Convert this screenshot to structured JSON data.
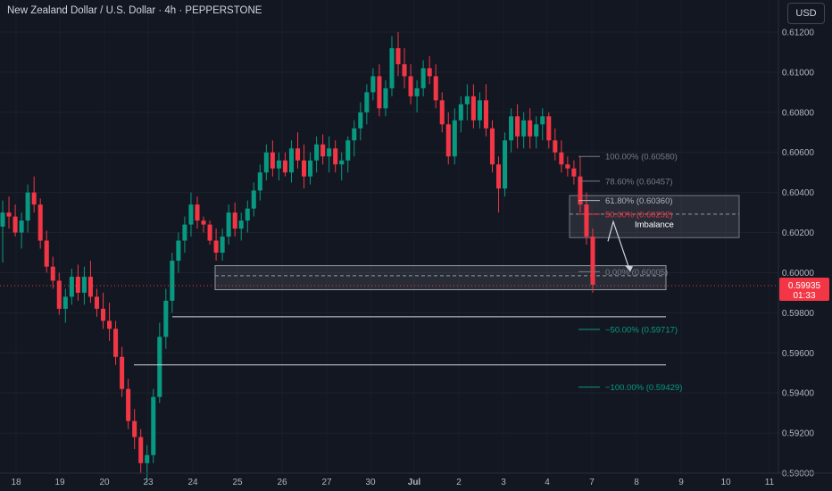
{
  "header": {
    "title": "New Zealand Dollar / U.S. Dollar · 4h · PEPPERSTONE",
    "currency_button": "USD"
  },
  "price_tag": {
    "price": "0.59935",
    "countdown": "01:33",
    "color": "#f23645"
  },
  "colors": {
    "up": "#089981",
    "down": "#f23645",
    "background": "#131722",
    "axis_text": "#b2b5be"
  },
  "annotations": {
    "imbalance_label": "Imbalance",
    "fib_levels": [
      {
        "text": "100.00% (0.60580)",
        "price": 0.6058,
        "color": "#787b86"
      },
      {
        "text": "78.60% (0.60457)",
        "price": 0.60457,
        "color": "#787b86"
      },
      {
        "text": "61.80% (0.60360)",
        "price": 0.6036,
        "color": "#b2b5be"
      },
      {
        "text": "50.00% (0.60292)",
        "price": 0.60292,
        "color": "#f23645"
      },
      {
        "text": "0.00% (0.60005)",
        "price": 0.60005,
        "color": "#787b86"
      },
      {
        "text": "−50.00% (0.59717)",
        "price": 0.59717,
        "color": "#089981"
      },
      {
        "text": "−100.00% (0.59429)",
        "price": 0.59429,
        "color": "#089981"
      }
    ],
    "zones": [
      {
        "name": "imbalance",
        "top": 0.60385,
        "bottom": 0.60175
      },
      {
        "name": "demand",
        "top": 0.60035,
        "bottom": 0.59915,
        "midline": 0.59985
      }
    ],
    "levels": [
      0.5978,
      0.5954
    ]
  },
  "chart_data": {
    "type": "candlestick",
    "timeframe": "4h",
    "y_ticks": [
      "0.61200",
      "0.61000",
      "0.60800",
      "0.60600",
      "0.60400",
      "0.60200",
      "0.60000",
      "0.59800",
      "0.59600",
      "0.59400",
      "0.59200",
      "0.59000"
    ],
    "ylim": [
      0.59,
      0.6125
    ],
    "x_ticks": [
      "18",
      "19",
      "20",
      "23",
      "24",
      "25",
      "26",
      "27",
      "30",
      "Jul",
      "2",
      "3",
      "4",
      "7",
      "8",
      "9",
      "10",
      "11"
    ],
    "x_tick_days": [
      0,
      1,
      2,
      3,
      4,
      5,
      6,
      7,
      8,
      9,
      10,
      11,
      12,
      13,
      14,
      15,
      16,
      17
    ],
    "candles": [
      [
        0.6023,
        0.6036,
        0.6005,
        0.603
      ],
      [
        0.603,
        0.6038,
        0.6022,
        0.6028
      ],
      [
        0.6028,
        0.6034,
        0.6018,
        0.602
      ],
      [
        0.602,
        0.603,
        0.6012,
        0.6026
      ],
      [
        0.6026,
        0.6044,
        0.602,
        0.604
      ],
      [
        0.604,
        0.6048,
        0.603,
        0.6034
      ],
      [
        0.6034,
        0.6037,
        0.6012,
        0.6016
      ],
      [
        0.6016,
        0.6021,
        0.6,
        0.6003
      ],
      [
        0.6003,
        0.6008,
        0.5992,
        0.5996
      ],
      [
        0.5996,
        0.6,
        0.5979,
        0.5982
      ],
      [
        0.5982,
        0.5992,
        0.5975,
        0.5988
      ],
      [
        0.5988,
        0.6002,
        0.5984,
        0.5998
      ],
      [
        0.5998,
        0.6004,
        0.5986,
        0.599
      ],
      [
        0.599,
        0.6003,
        0.5984,
        0.5998
      ],
      [
        0.5998,
        0.6006,
        0.5985,
        0.5988
      ],
      [
        0.5988,
        0.5992,
        0.5978,
        0.5982
      ],
      [
        0.5982,
        0.599,
        0.5972,
        0.5976
      ],
      [
        0.5976,
        0.5985,
        0.5966,
        0.5972
      ],
      [
        0.5972,
        0.5976,
        0.5954,
        0.5958
      ],
      [
        0.5958,
        0.5963,
        0.5938,
        0.5942
      ],
      [
        0.5942,
        0.5947,
        0.5922,
        0.5926
      ],
      [
        0.5926,
        0.5932,
        0.5912,
        0.5918
      ],
      [
        0.5918,
        0.5922,
        0.59,
        0.5905
      ],
      [
        0.5905,
        0.5914,
        0.5895,
        0.5909
      ],
      [
        0.5909,
        0.5942,
        0.5905,
        0.5938
      ],
      [
        0.5938,
        0.5975,
        0.5935,
        0.5968
      ],
      [
        0.5968,
        0.5992,
        0.5962,
        0.5986
      ],
      [
        0.5986,
        0.601,
        0.598,
        0.6006
      ],
      [
        0.6006,
        0.602,
        0.6,
        0.6016
      ],
      [
        0.6016,
        0.6028,
        0.601,
        0.6024
      ],
      [
        0.6024,
        0.604,
        0.6018,
        0.6034
      ],
      [
        0.6034,
        0.6038,
        0.6022,
        0.6026
      ],
      [
        0.6026,
        0.6028,
        0.602,
        0.6024
      ],
      [
        0.6024,
        0.6026,
        0.6014,
        0.6016
      ],
      [
        0.6016,
        0.6022,
        0.6006,
        0.601
      ],
      [
        0.601,
        0.6022,
        0.6006,
        0.6018
      ],
      [
        0.6018,
        0.6034,
        0.6014,
        0.603
      ],
      [
        0.603,
        0.6035,
        0.6018,
        0.6022
      ],
      [
        0.6022,
        0.603,
        0.6016,
        0.6026
      ],
      [
        0.6026,
        0.6036,
        0.602,
        0.6032
      ],
      [
        0.6032,
        0.6045,
        0.6028,
        0.6041
      ],
      [
        0.6041,
        0.6054,
        0.6036,
        0.605
      ],
      [
        0.605,
        0.6064,
        0.6046,
        0.606
      ],
      [
        0.606,
        0.6066,
        0.6048,
        0.6052
      ],
      [
        0.6052,
        0.606,
        0.6046,
        0.6056
      ],
      [
        0.6056,
        0.606,
        0.6048,
        0.605
      ],
      [
        0.605,
        0.6066,
        0.6045,
        0.6062
      ],
      [
        0.6062,
        0.607,
        0.6052,
        0.6056
      ],
      [
        0.6056,
        0.6064,
        0.6042,
        0.6048
      ],
      [
        0.6048,
        0.606,
        0.6044,
        0.6056
      ],
      [
        0.6056,
        0.6068,
        0.605,
        0.6064
      ],
      [
        0.6064,
        0.6069,
        0.6054,
        0.6058
      ],
      [
        0.6058,
        0.6068,
        0.605,
        0.6062
      ],
      [
        0.6062,
        0.6066,
        0.605,
        0.6054
      ],
      [
        0.6054,
        0.606,
        0.6046,
        0.6056
      ],
      [
        0.6056,
        0.6068,
        0.605,
        0.6066
      ],
      [
        0.6066,
        0.6076,
        0.6058,
        0.6072
      ],
      [
        0.6072,
        0.6085,
        0.6066,
        0.608
      ],
      [
        0.608,
        0.6094,
        0.6074,
        0.609
      ],
      [
        0.609,
        0.6102,
        0.6086,
        0.6098
      ],
      [
        0.6098,
        0.6104,
        0.6078,
        0.6082
      ],
      [
        0.6082,
        0.6096,
        0.6078,
        0.6092
      ],
      [
        0.6092,
        0.6118,
        0.6088,
        0.6112
      ],
      [
        0.6112,
        0.612,
        0.6098,
        0.6104
      ],
      [
        0.6104,
        0.6112,
        0.6092,
        0.6098
      ],
      [
        0.6098,
        0.6104,
        0.6084,
        0.6088
      ],
      [
        0.6088,
        0.6096,
        0.608,
        0.6092
      ],
      [
        0.6092,
        0.6106,
        0.6088,
        0.6102
      ],
      [
        0.6102,
        0.6108,
        0.6094,
        0.6098
      ],
      [
        0.6098,
        0.6104,
        0.6082,
        0.6086
      ],
      [
        0.6086,
        0.609,
        0.607,
        0.6074
      ],
      [
        0.6074,
        0.608,
        0.6054,
        0.6058
      ],
      [
        0.6058,
        0.6082,
        0.6054,
        0.6076
      ],
      [
        0.6076,
        0.6088,
        0.607,
        0.6084
      ],
      [
        0.6084,
        0.6094,
        0.6076,
        0.6088
      ],
      [
        0.6088,
        0.6094,
        0.6072,
        0.6076
      ],
      [
        0.6076,
        0.609,
        0.6072,
        0.6086
      ],
      [
        0.6086,
        0.6094,
        0.6068,
        0.6072
      ],
      [
        0.6072,
        0.6076,
        0.605,
        0.6054
      ],
      [
        0.6054,
        0.6058,
        0.603,
        0.6042
      ],
      [
        0.6042,
        0.607,
        0.6038,
        0.6066
      ],
      [
        0.6066,
        0.6082,
        0.606,
        0.6078
      ],
      [
        0.6078,
        0.6084,
        0.6062,
        0.6068
      ],
      [
        0.6068,
        0.608,
        0.6062,
        0.6076
      ],
      [
        0.6076,
        0.6082,
        0.6062,
        0.6068
      ],
      [
        0.6068,
        0.6078,
        0.6062,
        0.6074
      ],
      [
        0.6074,
        0.6082,
        0.6066,
        0.6078
      ],
      [
        0.6078,
        0.608,
        0.6062,
        0.6066
      ],
      [
        0.6066,
        0.6072,
        0.6056,
        0.606
      ],
      [
        0.606,
        0.6066,
        0.605,
        0.6054
      ],
      [
        0.6054,
        0.6058,
        0.6048,
        0.6052
      ],
      [
        0.6052,
        0.6056,
        0.6044,
        0.6048
      ],
      [
        0.6048,
        0.6058,
        0.603,
        0.6034
      ],
      [
        0.6034,
        0.604,
        0.6014,
        0.6018
      ],
      [
        0.6018,
        0.6022,
        0.599,
        0.5994
      ]
    ]
  }
}
